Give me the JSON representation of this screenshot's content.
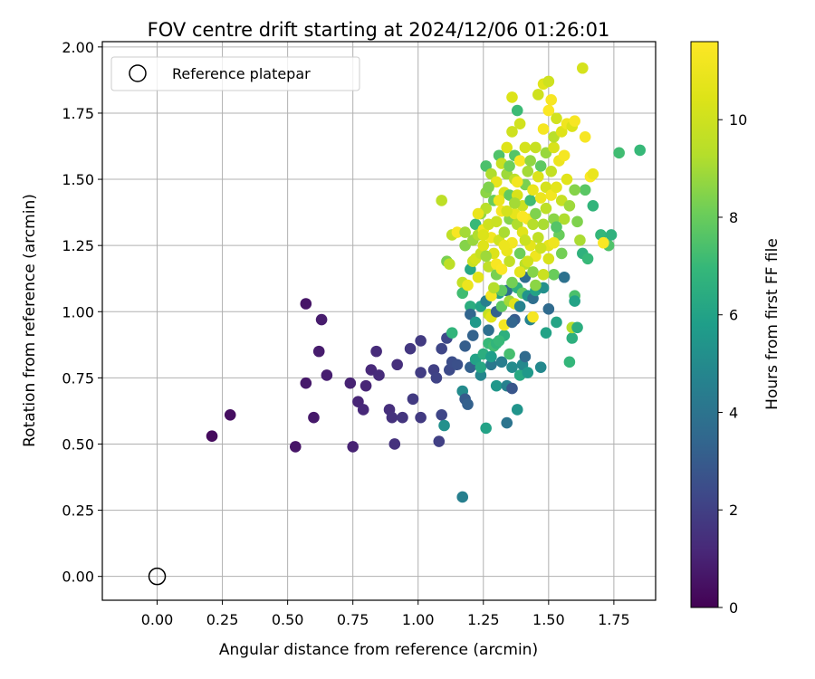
{
  "chart_data": {
    "type": "scatter",
    "title": "FOV centre drift starting at 2024/12/06 01:26:01",
    "xlabel": "Angular distance from reference (arcmin)",
    "ylabel": "Rotation from reference (arcmin)",
    "xlim": [
      -0.21,
      1.91
    ],
    "ylim": [
      -0.09,
      2.02
    ],
    "xticks": [
      0.0,
      0.25,
      0.5,
      0.75,
      1.0,
      1.25,
      1.5,
      1.75
    ],
    "xtick_labels": [
      "0.00",
      "0.25",
      "0.50",
      "0.75",
      "1.00",
      "1.25",
      "1.50",
      "1.75"
    ],
    "yticks": [
      0.0,
      0.25,
      0.5,
      0.75,
      1.0,
      1.25,
      1.5,
      1.75,
      2.0
    ],
    "ytick_labels": [
      "0.00",
      "0.25",
      "0.50",
      "0.75",
      "1.00",
      "1.25",
      "1.50",
      "1.75",
      "2.00"
    ],
    "grid": true,
    "legend": {
      "placement": "upper-left",
      "label": "Reference platepar"
    },
    "reference_point": {
      "x": 0.0,
      "y": 0.0
    },
    "colorbar": {
      "label": "Hours from first FF file",
      "range": [
        0,
        11.6
      ],
      "ticks": [
        0,
        2,
        4,
        6,
        8,
        10
      ],
      "tick_labels": [
        "0",
        "2",
        "4",
        "6",
        "8",
        "10"
      ],
      "colormap": "viridis"
    },
    "points": [
      [
        0.21,
        0.53,
        0.3
      ],
      [
        0.28,
        0.61,
        0.4
      ],
      [
        0.53,
        0.49,
        0.6
      ],
      [
        0.57,
        1.03,
        0.6
      ],
      [
        0.57,
        0.73,
        0.7
      ],
      [
        0.6,
        0.6,
        0.7
      ],
      [
        0.63,
        0.97,
        0.8
      ],
      [
        0.62,
        0.85,
        0.8
      ],
      [
        0.65,
        0.76,
        0.9
      ],
      [
        0.74,
        0.73,
        1.0
      ],
      [
        0.75,
        0.49,
        1.0
      ],
      [
        0.77,
        0.66,
        1.1
      ],
      [
        0.79,
        0.63,
        1.2
      ],
      [
        0.8,
        0.72,
        1.1
      ],
      [
        0.82,
        0.78,
        1.2
      ],
      [
        0.84,
        0.85,
        1.3
      ],
      [
        0.85,
        0.76,
        1.3
      ],
      [
        0.89,
        0.63,
        1.4
      ],
      [
        0.9,
        0.6,
        1.5
      ],
      [
        0.91,
        0.5,
        1.5
      ],
      [
        0.92,
        0.8,
        1.4
      ],
      [
        0.94,
        0.6,
        1.6
      ],
      [
        0.97,
        0.86,
        1.7
      ],
      [
        0.98,
        0.67,
        1.8
      ],
      [
        1.01,
        0.89,
        1.8
      ],
      [
        1.01,
        0.6,
        1.8
      ],
      [
        1.01,
        0.77,
        1.9
      ],
      [
        1.06,
        0.78,
        2.0
      ],
      [
        1.07,
        0.75,
        2.1
      ],
      [
        1.08,
        0.51,
        2.0
      ],
      [
        1.09,
        0.61,
        2.2
      ],
      [
        1.09,
        0.86,
        2.2
      ],
      [
        1.1,
        0.57,
        5.2
      ],
      [
        1.11,
        0.9,
        2.3
      ],
      [
        1.12,
        0.78,
        2.4
      ],
      [
        1.13,
        0.92,
        6.8
      ],
      [
        1.13,
        0.81,
        2.5
      ],
      [
        1.15,
        0.8,
        2.6
      ],
      [
        1.17,
        0.3,
        4.5
      ],
      [
        1.17,
        0.7,
        5.0
      ],
      [
        1.18,
        0.67,
        3.0
      ],
      [
        1.19,
        0.65,
        3.2
      ],
      [
        1.18,
        0.87,
        3.1
      ],
      [
        1.2,
        0.79,
        3.2
      ],
      [
        1.21,
        0.91,
        3.3
      ],
      [
        1.22,
        0.82,
        6.0
      ],
      [
        1.24,
        0.76,
        4.8
      ],
      [
        1.24,
        0.79,
        6.2
      ],
      [
        1.25,
        0.84,
        6.5
      ],
      [
        1.26,
        0.56,
        6.0
      ],
      [
        1.27,
        0.93,
        3.8
      ],
      [
        1.27,
        0.88,
        7.0
      ],
      [
        1.28,
        0.8,
        4.2
      ],
      [
        1.29,
        0.87,
        7.2
      ],
      [
        1.3,
        0.72,
        5.5
      ],
      [
        1.32,
        0.81,
        4.4
      ],
      [
        1.33,
        0.91,
        6.6
      ],
      [
        1.34,
        0.72,
        4.6
      ],
      [
        1.35,
        0.84,
        7.3
      ],
      [
        1.36,
        0.71,
        2.8
      ],
      [
        1.36,
        0.79,
        5.0
      ],
      [
        1.37,
        0.97,
        3.0
      ],
      [
        1.38,
        0.63,
        5.4
      ],
      [
        1.39,
        0.76,
        6.3
      ],
      [
        1.4,
        0.8,
        4.9
      ],
      [
        1.41,
        0.83,
        3.6
      ],
      [
        1.42,
        0.77,
        5.6
      ],
      [
        1.43,
        0.97,
        4.7
      ],
      [
        1.44,
        0.98,
        11.3
      ],
      [
        1.47,
        0.79,
        4.9
      ],
      [
        1.3,
        0.88,
        6.8
      ],
      [
        1.31,
        0.89,
        7.0
      ],
      [
        1.28,
        0.83,
        5.8
      ],
      [
        1.34,
        0.58,
        4.0
      ],
      [
        1.2,
        1.02,
        6.5
      ],
      [
        1.2,
        0.99,
        3.4
      ],
      [
        1.22,
        0.96,
        5.6
      ],
      [
        1.24,
        1.02,
        6.0
      ],
      [
        1.26,
        1.04,
        4.5
      ],
      [
        1.27,
        0.99,
        9.8
      ],
      [
        1.28,
        0.98,
        10.6
      ],
      [
        1.3,
        1.0,
        3.2
      ],
      [
        1.31,
        1.07,
        5.9
      ],
      [
        1.32,
        1.02,
        7.8
      ],
      [
        1.33,
        0.95,
        11.3
      ],
      [
        1.34,
        1.08,
        3.8
      ],
      [
        1.35,
        1.04,
        9.0
      ],
      [
        1.36,
        0.96,
        3.4
      ],
      [
        1.37,
        1.03,
        10.5
      ],
      [
        1.38,
        1.09,
        6.6
      ],
      [
        1.39,
        1.02,
        4.7
      ],
      [
        1.4,
        1.07,
        7.9
      ],
      [
        1.41,
        1.13,
        3.7
      ],
      [
        1.42,
        1.06,
        5.4
      ],
      [
        1.44,
        1.05,
        3.8
      ],
      [
        1.45,
        1.08,
        6.0
      ],
      [
        1.48,
        1.09,
        5.2
      ],
      [
        1.49,
        0.92,
        6.0
      ],
      [
        1.5,
        1.01,
        3.6
      ],
      [
        1.52,
        1.14,
        8.0
      ],
      [
        1.53,
        0.96,
        6.1
      ],
      [
        1.56,
        1.13,
        3.9
      ],
      [
        1.58,
        0.81,
        6.9
      ],
      [
        1.59,
        0.9,
        6.6
      ],
      [
        1.59,
        0.94,
        9.3
      ],
      [
        1.6,
        1.06,
        7.4
      ],
      [
        1.6,
        1.04,
        6.0
      ],
      [
        1.61,
        0.94,
        6.5
      ],
      [
        1.63,
        1.22,
        6.7
      ],
      [
        1.65,
        1.2,
        7.0
      ],
      [
        1.67,
        1.4,
        6.8
      ],
      [
        1.7,
        1.29,
        6.9
      ],
      [
        1.73,
        1.25,
        7.5
      ],
      [
        1.74,
        1.29,
        6.7
      ],
      [
        1.77,
        1.6,
        7.2
      ],
      [
        1.85,
        1.61,
        7.0
      ],
      [
        1.64,
        1.46,
        7.7
      ],
      [
        1.6,
        1.46,
        8.5
      ],
      [
        1.09,
        1.42,
        9.5
      ],
      [
        1.11,
        1.19,
        8.3
      ],
      [
        1.12,
        1.18,
        9.5
      ],
      [
        1.13,
        1.29,
        9.6
      ],
      [
        1.15,
        1.3,
        11.4
      ],
      [
        1.17,
        1.11,
        9.7
      ],
      [
        1.17,
        1.07,
        7.2
      ],
      [
        1.18,
        1.25,
        8.5
      ],
      [
        1.18,
        1.3,
        9.0
      ],
      [
        1.19,
        1.1,
        11.0
      ],
      [
        1.2,
        1.16,
        6.2
      ],
      [
        1.21,
        1.19,
        9.9
      ],
      [
        1.21,
        1.27,
        8.8
      ],
      [
        1.22,
        1.33,
        7.0
      ],
      [
        1.22,
        1.2,
        10.2
      ],
      [
        1.23,
        1.13,
        10.7
      ],
      [
        1.23,
        1.29,
        9.2
      ],
      [
        1.24,
        1.37,
        8.7
      ],
      [
        1.24,
        1.22,
        9.8
      ],
      [
        1.25,
        1.25,
        10.5
      ],
      [
        1.25,
        1.31,
        11.1
      ],
      [
        1.26,
        1.39,
        9.4
      ],
      [
        1.26,
        1.45,
        8.6
      ],
      [
        1.26,
        1.55,
        7.4
      ],
      [
        1.27,
        1.33,
        10.0
      ],
      [
        1.27,
        1.17,
        9.6
      ],
      [
        1.28,
        1.28,
        11.2
      ],
      [
        1.28,
        1.52,
        9.2
      ],
      [
        1.29,
        1.42,
        8.0
      ],
      [
        1.29,
        1.22,
        10.4
      ],
      [
        1.3,
        1.34,
        9.9
      ],
      [
        1.3,
        1.49,
        10.8
      ],
      [
        1.3,
        1.14,
        8.3
      ],
      [
        1.31,
        1.59,
        7.5
      ],
      [
        1.31,
        1.27,
        10.1
      ],
      [
        1.32,
        1.38,
        11.4
      ],
      [
        1.32,
        1.08,
        7.8
      ],
      [
        1.32,
        1.56,
        9.8
      ],
      [
        1.33,
        1.45,
        10.3
      ],
      [
        1.33,
        1.3,
        9.1
      ],
      [
        1.34,
        1.23,
        10.9
      ],
      [
        1.34,
        1.52,
        8.9
      ],
      [
        1.34,
        1.62,
        10.5
      ],
      [
        1.35,
        1.35,
        8.5
      ],
      [
        1.35,
        1.44,
        7.9
      ],
      [
        1.35,
        1.19,
        9.7
      ],
      [
        1.36,
        1.68,
        10.0
      ],
      [
        1.36,
        1.81,
        10.4
      ],
      [
        1.36,
        1.26,
        11.2
      ],
      [
        1.37,
        1.5,
        9.5
      ],
      [
        1.37,
        1.37,
        10.8
      ],
      [
        1.37,
        1.59,
        7.6
      ],
      [
        1.38,
        1.33,
        9.2
      ],
      [
        1.38,
        1.76,
        7.1
      ],
      [
        1.38,
        1.44,
        10.3
      ],
      [
        1.39,
        1.71,
        10.1
      ],
      [
        1.39,
        1.22,
        8.1
      ],
      [
        1.39,
        1.57,
        11.5
      ],
      [
        1.4,
        1.4,
        9.9
      ],
      [
        1.4,
        1.3,
        10.6
      ],
      [
        1.41,
        1.48,
        8.3
      ],
      [
        1.41,
        1.18,
        9.4
      ],
      [
        1.41,
        1.62,
        10.2
      ],
      [
        1.42,
        1.35,
        11.3
      ],
      [
        1.42,
        1.53,
        9.0
      ],
      [
        1.43,
        1.25,
        10.7
      ],
      [
        1.43,
        1.42,
        7.2
      ],
      [
        1.43,
        1.57,
        8.7
      ],
      [
        1.44,
        1.46,
        10.9
      ],
      [
        1.44,
        1.33,
        9.3
      ],
      [
        1.45,
        1.21,
        11.1
      ],
      [
        1.45,
        1.62,
        9.8
      ],
      [
        1.45,
        1.37,
        8.4
      ],
      [
        1.46,
        1.51,
        10.4
      ],
      [
        1.46,
        1.28,
        9.6
      ],
      [
        1.46,
        1.82,
        10.0
      ],
      [
        1.47,
        1.43,
        11.0
      ],
      [
        1.47,
        1.55,
        7.8
      ],
      [
        1.48,
        1.86,
        10.6
      ],
      [
        1.48,
        1.33,
        9.1
      ],
      [
        1.48,
        1.69,
        11.3
      ],
      [
        1.49,
        1.47,
        10.2
      ],
      [
        1.49,
        1.6,
        8.8
      ],
      [
        1.49,
        1.39,
        9.5
      ],
      [
        1.5,
        1.76,
        11.5
      ],
      [
        1.5,
        1.25,
        10.8
      ],
      [
        1.5,
        1.87,
        10.0
      ],
      [
        1.51,
        1.53,
        9.7
      ],
      [
        1.51,
        1.44,
        11.2
      ],
      [
        1.51,
        1.8,
        11.4
      ],
      [
        1.52,
        1.62,
        10.3
      ],
      [
        1.52,
        1.35,
        8.6
      ],
      [
        1.52,
        1.66,
        9.4
      ],
      [
        1.53,
        1.47,
        10.7
      ],
      [
        1.53,
        1.73,
        10.1
      ],
      [
        1.54,
        1.29,
        8.0
      ],
      [
        1.54,
        1.57,
        11.0
      ],
      [
        1.55,
        1.42,
        9.8
      ],
      [
        1.55,
        1.68,
        10.5
      ],
      [
        1.56,
        1.35,
        9.2
      ],
      [
        1.56,
        1.59,
        11.3
      ],
      [
        1.57,
        1.5,
        10.6
      ],
      [
        1.57,
        1.71,
        11.1
      ],
      [
        1.58,
        1.4,
        8.9
      ],
      [
        1.59,
        1.7,
        10.4
      ],
      [
        1.6,
        1.72,
        11.4
      ],
      [
        1.61,
        1.34,
        8.4
      ],
      [
        1.62,
        1.27,
        9.1
      ],
      [
        1.63,
        1.92,
        10.2
      ],
      [
        1.64,
        1.66,
        11.4
      ],
      [
        1.66,
        1.51,
        11.5
      ],
      [
        1.71,
        1.26,
        11.5
      ],
      [
        1.67,
        1.52,
        10.9
      ],
      [
        1.55,
        1.22,
        8.2
      ],
      [
        1.53,
        1.32,
        7.6
      ],
      [
        1.28,
        1.06,
        11.2
      ],
      [
        1.3,
        1.18,
        11.4
      ],
      [
        1.33,
        1.25,
        11.0
      ],
      [
        1.25,
        1.29,
        10.4
      ],
      [
        1.35,
        1.55,
        8.1
      ],
      [
        1.38,
        1.49,
        11.2
      ],
      [
        1.41,
        1.27,
        9.9
      ],
      [
        1.44,
        1.15,
        8.5
      ],
      [
        1.47,
        1.24,
        10.0
      ],
      [
        1.26,
        1.21,
        8.9
      ],
      [
        1.29,
        1.09,
        9.3
      ],
      [
        1.32,
        1.16,
        11.5
      ],
      [
        1.23,
        1.37,
        10.9
      ],
      [
        1.39,
        1.15,
        10.7
      ],
      [
        1.36,
        1.11,
        8.2
      ],
      [
        1.42,
        1.19,
        10.1
      ],
      [
        1.45,
        1.1,
        8.6
      ],
      [
        1.48,
        1.14,
        9.9
      ],
      [
        1.5,
        1.2,
        10.3
      ],
      [
        1.52,
        1.26,
        11.1
      ],
      [
        1.27,
        1.47,
        8.4
      ],
      [
        1.31,
        1.42,
        11.0
      ],
      [
        1.34,
        1.38,
        10.2
      ],
      [
        1.37,
        1.41,
        9.0
      ],
      [
        1.4,
        1.36,
        11.5
      ]
    ]
  }
}
